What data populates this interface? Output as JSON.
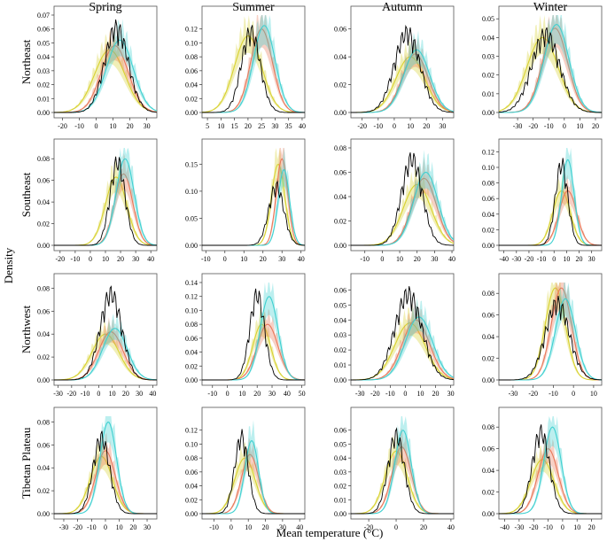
{
  "figure": {
    "ylabel": "Density",
    "xlabel": "Mean temperature (°C)"
  },
  "chart_data": {
    "type": "area",
    "title": "",
    "xlabel": "Mean temperature (°C)",
    "ylabel": "Density",
    "seasons": [
      "Spring",
      "Summer",
      "Autumn",
      "Winter"
    ],
    "regions": [
      "Northeast",
      "Southeast",
      "Northwest",
      "Tibetan Plateau"
    ],
    "series_colors": {
      "observed": "#000000",
      "scenario_yellow": "#d8d230",
      "scenario_red": "#e8785a",
      "scenario_cyan": "#3fd0d0"
    },
    "panels": [
      {
        "region": "Northeast",
        "season": "Spring",
        "xlim": [
          -25,
          36
        ],
        "xticks": [
          -20,
          -10,
          0,
          10,
          20,
          30
        ],
        "ylim": [
          0,
          0.07
        ],
        "yticks": [
          0.0,
          0.01,
          0.02,
          0.03,
          0.04,
          0.05,
          0.06,
          0.07
        ],
        "obs": {
          "m": 12,
          "s": 7,
          "p": 0.067
        },
        "yellow": {
          "m": 8,
          "s": 9,
          "p": 0.045
        },
        "red": {
          "m": 11,
          "s": 8,
          "p": 0.048
        },
        "cyan": {
          "m": 14,
          "s": 8,
          "p": 0.052
        }
      },
      {
        "region": "Northeast",
        "season": "Summer",
        "xlim": [
          3,
          41
        ],
        "xticks": [
          5,
          10,
          15,
          20,
          25,
          30,
          35,
          40
        ],
        "ylim": [
          0,
          0.14
        ],
        "yticks": [
          0.0,
          0.02,
          0.04,
          0.06,
          0.08,
          0.1,
          0.12
        ],
        "obs": {
          "m": 21,
          "s": 3.5,
          "p": 0.128
        },
        "yellow": {
          "m": 20,
          "s": 5,
          "p": 0.11
        },
        "red": {
          "m": 25,
          "s": 4,
          "p": 0.12
        },
        "cyan": {
          "m": 26,
          "s": 4,
          "p": 0.125
        }
      },
      {
        "region": "Northeast",
        "season": "Autumn",
        "xlim": [
          -27,
          37
        ],
        "xticks": [
          -20,
          -10,
          0,
          10,
          20,
          30
        ],
        "ylim": [
          0,
          0.07
        ],
        "yticks": [
          0.0,
          0.02,
          0.04,
          0.06
        ],
        "obs": {
          "m": 8,
          "s": 8,
          "p": 0.063
        },
        "yellow": {
          "m": 10,
          "s": 9,
          "p": 0.04
        },
        "red": {
          "m": 13,
          "s": 8,
          "p": 0.042
        },
        "cyan": {
          "m": 14,
          "s": 8,
          "p": 0.045
        }
      },
      {
        "region": "Northeast",
        "season": "Winter",
        "xlim": [
          -42,
          24
        ],
        "xticks": [
          -30,
          -20,
          -10,
          0,
          10,
          20
        ],
        "ylim": [
          0,
          0.052
        ],
        "yticks": [
          0.0,
          0.01,
          0.02,
          0.03,
          0.04,
          0.05
        ],
        "obs": {
          "m": -12,
          "s": 9,
          "p": 0.046
        },
        "yellow": {
          "m": -14,
          "s": 10,
          "p": 0.04
        },
        "red": {
          "m": -6,
          "s": 8,
          "p": 0.045
        },
        "cyan": {
          "m": -5,
          "s": 8,
          "p": 0.047
        }
      },
      {
        "region": "Southeast",
        "season": "Spring",
        "xlim": [
          -24,
          44
        ],
        "xticks": [
          -20,
          -10,
          0,
          10,
          20,
          30,
          40
        ],
        "ylim": [
          0,
          0.09
        ],
        "yticks": [
          0.0,
          0.02,
          0.04,
          0.06,
          0.08
        ],
        "obs": {
          "m": 18,
          "s": 5,
          "p": 0.085
        },
        "yellow": {
          "m": 17,
          "s": 7,
          "p": 0.063
        },
        "red": {
          "m": 22,
          "s": 6,
          "p": 0.066
        },
        "cyan": {
          "m": 23,
          "s": 6,
          "p": 0.08
        }
      },
      {
        "region": "Southeast",
        "season": "Summer",
        "xlim": [
          -12,
          42
        ],
        "xticks": [
          -10,
          0,
          10,
          20,
          30,
          40
        ],
        "ylim": [
          0,
          0.18
        ],
        "yticks": [
          0.0,
          0.05,
          0.1,
          0.15
        ],
        "obs": {
          "m": 27,
          "s": 4,
          "p": 0.12
        },
        "yellow": {
          "m": 28,
          "s": 3.5,
          "p": 0.15
        },
        "red": {
          "m": 30,
          "s": 3,
          "p": 0.16
        },
        "cyan": {
          "m": 31,
          "s": 3,
          "p": 0.14
        }
      },
      {
        "region": "Southeast",
        "season": "Autumn",
        "xlim": [
          -18,
          41
        ],
        "xticks": [
          -10,
          0,
          10,
          20,
          30,
          40
        ],
        "ylim": [
          0,
          0.08
        ],
        "yticks": [
          0.0,
          0.02,
          0.04,
          0.06,
          0.08
        ],
        "obs": {
          "m": 17,
          "s": 6,
          "p": 0.078
        },
        "yellow": {
          "m": 20,
          "s": 8,
          "p": 0.05
        },
        "red": {
          "m": 24,
          "s": 7,
          "p": 0.055
        },
        "cyan": {
          "m": 25,
          "s": 7,
          "p": 0.06
        }
      },
      {
        "region": "Southeast",
        "season": "Winter",
        "xlim": [
          -44,
          38
        ],
        "xticks": [
          -40,
          -30,
          -20,
          -10,
          0,
          10,
          20,
          30
        ],
        "ylim": [
          0,
          0.125
        ],
        "yticks": [
          0.0,
          0.02,
          0.04,
          0.06,
          0.08,
          0.1,
          0.12
        ],
        "obs": {
          "m": 6,
          "s": 5,
          "p": 0.115
        },
        "yellow": {
          "m": 6,
          "s": 7,
          "p": 0.07
        },
        "red": {
          "m": 11,
          "s": 7,
          "p": 0.07
        },
        "cyan": {
          "m": 11,
          "s": 5,
          "p": 0.11
        }
      },
      {
        "region": "Northwest",
        "season": "Spring",
        "xlim": [
          -33,
          43
        ],
        "xticks": [
          -30,
          -20,
          -10,
          0,
          10,
          20,
          30,
          40
        ],
        "ylim": [
          0,
          0.085
        ],
        "yticks": [
          0.0,
          0.02,
          0.04,
          0.06,
          0.08
        ],
        "obs": {
          "m": 9,
          "s": 8,
          "p": 0.083
        },
        "yellow": {
          "m": 5,
          "s": 10,
          "p": 0.04
        },
        "red": {
          "m": 9,
          "s": 9,
          "p": 0.042
        },
        "cyan": {
          "m": 12,
          "s": 9,
          "p": 0.045
        }
      },
      {
        "region": "Northwest",
        "season": "Summer",
        "xlim": [
          -17,
          52
        ],
        "xticks": [
          -10,
          0,
          10,
          20,
          30,
          40,
          50
        ],
        "ylim": [
          0,
          0.14
        ],
        "yticks": [
          0.0,
          0.02,
          0.04,
          0.06,
          0.08,
          0.1,
          0.12,
          0.14
        ],
        "obs": {
          "m": 20,
          "s": 5,
          "p": 0.135
        },
        "yellow": {
          "m": 23,
          "s": 6,
          "p": 0.08
        },
        "red": {
          "m": 27,
          "s": 7,
          "p": 0.08
        },
        "cyan": {
          "m": 28,
          "s": 6,
          "p": 0.12
        }
      },
      {
        "region": "Northwest",
        "season": "Autumn",
        "xlim": [
          -36,
          32
        ],
        "xticks": [
          -30,
          -20,
          -10,
          0,
          10,
          20,
          30
        ],
        "ylim": [
          0,
          0.065
        ],
        "yticks": [
          0.0,
          0.01,
          0.02,
          0.03,
          0.04,
          0.05,
          0.06
        ],
        "obs": {
          "m": 2,
          "s": 9,
          "p": 0.063
        },
        "yellow": {
          "m": 3,
          "s": 10,
          "p": 0.038
        },
        "red": {
          "m": 7,
          "s": 9,
          "p": 0.04
        },
        "cyan": {
          "m": 9,
          "s": 9,
          "p": 0.042
        }
      },
      {
        "region": "Northwest",
        "season": "Winter",
        "xlim": [
          -37,
          14
        ],
        "xticks": [
          -30,
          -20,
          -10,
          0,
          10
        ],
        "ylim": [
          0,
          0.09
        ],
        "yticks": [
          0.0,
          0.02,
          0.04,
          0.06,
          0.08
        ],
        "obs": {
          "m": -8,
          "s": 6,
          "p": 0.078
        },
        "yellow": {
          "m": -9,
          "s": 5,
          "p": 0.085
        },
        "red": {
          "m": -6,
          "s": 5,
          "p": 0.085
        },
        "cyan": {
          "m": -4,
          "s": 5,
          "p": 0.075
        }
      },
      {
        "region": "Tibetan Plateau",
        "season": "Spring",
        "xlim": [
          -37,
          37
        ],
        "xticks": [
          -30,
          -20,
          -10,
          0,
          10,
          20,
          30
        ],
        "ylim": [
          0,
          0.085
        ],
        "yticks": [
          0.0,
          0.02,
          0.04,
          0.06,
          0.08
        ],
        "obs": {
          "m": -3,
          "s": 6,
          "p": 0.073
        },
        "yellow": {
          "m": -3,
          "s": 8,
          "p": 0.05
        },
        "red": {
          "m": 0,
          "s": 7,
          "p": 0.055
        },
        "cyan": {
          "m": 2,
          "s": 6,
          "p": 0.08
        }
      },
      {
        "region": "Tibetan Plateau",
        "season": "Summer",
        "xlim": [
          -17,
          43
        ],
        "xticks": [
          -10,
          0,
          10,
          20,
          30,
          40
        ],
        "ylim": [
          0,
          0.14
        ],
        "yticks": [
          0.0,
          0.02,
          0.04,
          0.06,
          0.08,
          0.1,
          0.12
        ],
        "obs": {
          "m": 6,
          "s": 4,
          "p": 0.122
        },
        "yellow": {
          "m": 8,
          "s": 6,
          "p": 0.08
        },
        "red": {
          "m": 11,
          "s": 5,
          "p": 0.085
        },
        "cyan": {
          "m": 12,
          "s": 4,
          "p": 0.105
        }
      },
      {
        "region": "Tibetan Plateau",
        "season": "Autumn",
        "xlim": [
          -33,
          42
        ],
        "xticks": [
          -20,
          0,
          20,
          40
        ],
        "ylim": [
          0,
          0.07
        ],
        "yticks": [
          0.0,
          0.01,
          0.02,
          0.03,
          0.04,
          0.05,
          0.06
        ],
        "obs": {
          "m": 0,
          "s": 6,
          "p": 0.062
        },
        "yellow": {
          "m": 0,
          "s": 8,
          "p": 0.045
        },
        "red": {
          "m": 4,
          "s": 7,
          "p": 0.048
        },
        "cyan": {
          "m": 5,
          "s": 6,
          "p": 0.06
        }
      },
      {
        "region": "Tibetan Plateau",
        "season": "Winter",
        "xlim": [
          -44,
          27
        ],
        "xticks": [
          -40,
          -30,
          -20,
          -10,
          0,
          10,
          20
        ],
        "ylim": [
          0,
          0.09
        ],
        "yticks": [
          0.0,
          0.02,
          0.04,
          0.06,
          0.08
        ],
        "obs": {
          "m": -15,
          "s": 6,
          "p": 0.083
        },
        "yellow": {
          "m": -14,
          "s": 8,
          "p": 0.05
        },
        "red": {
          "m": -10,
          "s": 7,
          "p": 0.06
        },
        "cyan": {
          "m": -7,
          "s": 6,
          "p": 0.08
        }
      }
    ]
  }
}
